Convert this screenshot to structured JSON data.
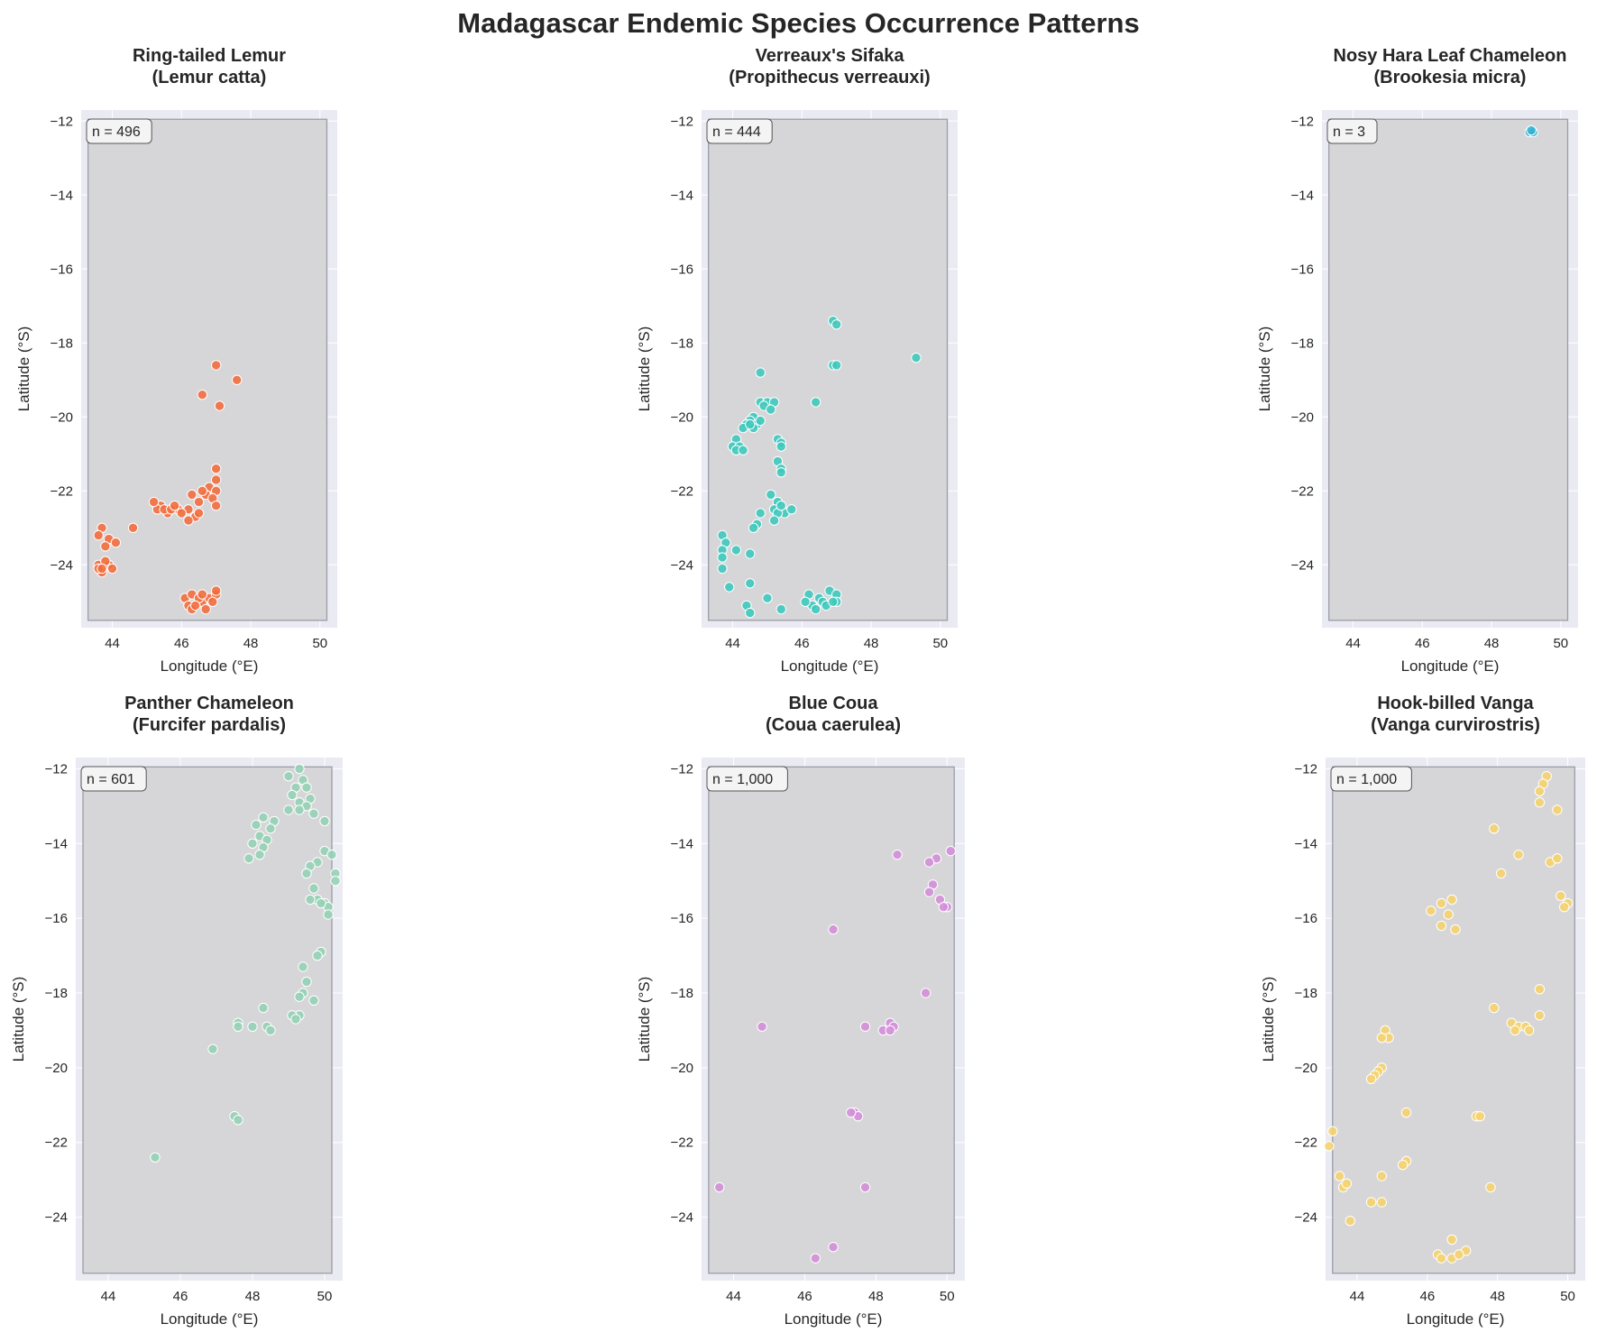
{
  "figure": {
    "title": "Madagascar Endemic Species Occurrence Patterns",
    "xlabel": "Longitude (°E)",
    "ylabel": "Latitude (°S)"
  },
  "chart_data": [
    {
      "type": "scatter",
      "title_line1": "Ring-tailed Lemur",
      "title_line2": "(Lemur catta)",
      "count_label": "n = 496",
      "color": "#f26b3a",
      "xlim": [
        43.1,
        50.5
      ],
      "ylim": [
        -25.7,
        -11.7
      ],
      "xticks": [
        44,
        46,
        48,
        50
      ],
      "yticks": [
        -12,
        -14,
        -16,
        -18,
        -20,
        -22,
        -24
      ],
      "points": [
        [
          47.0,
          -18.6
        ],
        [
          47.6,
          -19.0
        ],
        [
          46.6,
          -19.4
        ],
        [
          47.1,
          -19.7
        ],
        [
          47.0,
          -21.4
        ],
        [
          47.0,
          -21.7
        ],
        [
          46.8,
          -21.9
        ],
        [
          47.0,
          -22.0
        ],
        [
          46.7,
          -22.1
        ],
        [
          46.9,
          -22.2
        ],
        [
          46.5,
          -22.3
        ],
        [
          47.0,
          -22.4
        ],
        [
          46.6,
          -22.0
        ],
        [
          46.3,
          -22.1
        ],
        [
          46.2,
          -22.5
        ],
        [
          46.4,
          -22.7
        ],
        [
          46.2,
          -22.8
        ],
        [
          46.5,
          -22.6
        ],
        [
          45.9,
          -22.5
        ],
        [
          46.0,
          -22.6
        ],
        [
          45.4,
          -22.4
        ],
        [
          45.3,
          -22.5
        ],
        [
          45.6,
          -22.6
        ],
        [
          45.2,
          -22.3
        ],
        [
          45.5,
          -22.5
        ],
        [
          45.7,
          -22.5
        ],
        [
          45.8,
          -22.4
        ],
        [
          44.6,
          -23.0
        ],
        [
          43.7,
          -23.0
        ],
        [
          43.6,
          -23.2
        ],
        [
          43.9,
          -23.3
        ],
        [
          44.1,
          -23.4
        ],
        [
          43.8,
          -23.5
        ],
        [
          43.6,
          -24.0
        ],
        [
          43.7,
          -24.2
        ],
        [
          43.9,
          -24.0
        ],
        [
          44.0,
          -24.1
        ],
        [
          43.8,
          -23.9
        ],
        [
          43.6,
          -24.1
        ],
        [
          43.7,
          -24.1
        ],
        [
          46.1,
          -24.9
        ],
        [
          46.3,
          -24.8
        ],
        [
          46.2,
          -25.1
        ],
        [
          46.3,
          -25.2
        ],
        [
          46.6,
          -25.0
        ],
        [
          46.5,
          -24.9
        ],
        [
          46.7,
          -25.2
        ],
        [
          46.8,
          -24.9
        ],
        [
          47.0,
          -24.8
        ],
        [
          46.9,
          -25.0
        ],
        [
          47.0,
          -24.7
        ],
        [
          46.4,
          -25.1
        ],
        [
          46.6,
          -24.8
        ]
      ]
    },
    {
      "type": "scatter",
      "title_line1": "Verreaux's Sifaka",
      "title_line2": "(Propithecus verreauxi)",
      "count_label": "n = 444",
      "color": "#3cc8bc",
      "xlim": [
        43.1,
        50.5
      ],
      "ylim": [
        -25.7,
        -11.7
      ],
      "xticks": [
        44,
        46,
        48,
        50
      ],
      "yticks": [
        -12,
        -14,
        -16,
        -18,
        -20,
        -22,
        -24
      ],
      "points": [
        [
          46.9,
          -17.4
        ],
        [
          47.0,
          -17.5
        ],
        [
          49.3,
          -18.4
        ],
        [
          46.9,
          -18.6
        ],
        [
          47.0,
          -18.6
        ],
        [
          44.8,
          -18.8
        ],
        [
          46.4,
          -19.6
        ],
        [
          44.8,
          -19.6
        ],
        [
          45.0,
          -19.6
        ],
        [
          45.2,
          -19.6
        ],
        [
          44.9,
          -19.7
        ],
        [
          45.1,
          -19.8
        ],
        [
          44.6,
          -20.0
        ],
        [
          44.5,
          -20.1
        ],
        [
          44.7,
          -20.2
        ],
        [
          44.4,
          -20.2
        ],
        [
          44.6,
          -20.3
        ],
        [
          44.3,
          -20.3
        ],
        [
          44.8,
          -20.1
        ],
        [
          44.5,
          -20.2
        ],
        [
          44.1,
          -20.6
        ],
        [
          44.0,
          -20.8
        ],
        [
          44.2,
          -20.8
        ],
        [
          44.1,
          -20.9
        ],
        [
          44.3,
          -20.9
        ],
        [
          45.3,
          -20.6
        ],
        [
          45.4,
          -20.7
        ],
        [
          45.4,
          -20.8
        ],
        [
          45.3,
          -21.2
        ],
        [
          45.4,
          -21.4
        ],
        [
          45.4,
          -21.5
        ],
        [
          45.1,
          -22.1
        ],
        [
          45.3,
          -22.3
        ],
        [
          45.2,
          -22.5
        ],
        [
          45.5,
          -22.6
        ],
        [
          45.3,
          -22.6
        ],
        [
          45.7,
          -22.5
        ],
        [
          45.4,
          -22.4
        ],
        [
          44.8,
          -22.6
        ],
        [
          45.2,
          -22.8
        ],
        [
          44.7,
          -22.9
        ],
        [
          44.6,
          -23.0
        ],
        [
          43.7,
          -23.2
        ],
        [
          43.8,
          -23.4
        ],
        [
          43.7,
          -23.6
        ],
        [
          44.1,
          -23.6
        ],
        [
          43.7,
          -23.8
        ],
        [
          44.5,
          -23.7
        ],
        [
          43.7,
          -24.1
        ],
        [
          44.5,
          -24.5
        ],
        [
          43.9,
          -24.6
        ],
        [
          45.0,
          -24.9
        ],
        [
          44.4,
          -25.1
        ],
        [
          44.5,
          -25.3
        ],
        [
          45.4,
          -25.2
        ],
        [
          46.2,
          -24.8
        ],
        [
          46.5,
          -24.9
        ],
        [
          46.6,
          -25.0
        ],
        [
          46.8,
          -24.7
        ],
        [
          47.0,
          -24.8
        ],
        [
          47.0,
          -25.0
        ],
        [
          46.3,
          -25.1
        ],
        [
          46.1,
          -25.0
        ],
        [
          46.4,
          -25.2
        ],
        [
          46.7,
          -25.1
        ],
        [
          46.9,
          -25.0
        ]
      ]
    },
    {
      "type": "scatter",
      "title_line1": "Nosy Hara Leaf Chameleon",
      "title_line2": "(Brookesia micra)",
      "count_label": "n = 3",
      "color": "#34b4d2",
      "xlim": [
        43.1,
        50.5
      ],
      "ylim": [
        -25.7,
        -11.7
      ],
      "xticks": [
        44,
        46,
        48,
        50
      ],
      "yticks": [
        -12,
        -14,
        -16,
        -18,
        -20,
        -22,
        -24
      ],
      "points": [
        [
          49.1,
          -12.3
        ],
        [
          49.2,
          -12.3
        ],
        [
          49.15,
          -12.25
        ]
      ]
    },
    {
      "type": "scatter",
      "title_line1": "Panther Chameleon",
      "title_line2": "(Furcifer pardalis)",
      "count_label": "n = 601",
      "color": "#94d2b4",
      "xlim": [
        43.1,
        50.5
      ],
      "ylim": [
        -25.7,
        -11.7
      ],
      "xticks": [
        44,
        46,
        48,
        50
      ],
      "yticks": [
        -12,
        -14,
        -16,
        -18,
        -20,
        -22,
        -24
      ],
      "points": [
        [
          49.3,
          -12.0
        ],
        [
          49.0,
          -12.2
        ],
        [
          49.4,
          -12.3
        ],
        [
          49.2,
          -12.5
        ],
        [
          49.5,
          -12.5
        ],
        [
          49.1,
          -12.7
        ],
        [
          49.6,
          -12.8
        ],
        [
          49.3,
          -12.9
        ],
        [
          49.0,
          -13.1
        ],
        [
          49.5,
          -13.0
        ],
        [
          49.3,
          -13.1
        ],
        [
          49.7,
          -13.2
        ],
        [
          50.0,
          -13.4
        ],
        [
          48.3,
          -13.3
        ],
        [
          48.6,
          -13.4
        ],
        [
          48.1,
          -13.5
        ],
        [
          48.5,
          -13.6
        ],
        [
          48.2,
          -13.8
        ],
        [
          48.4,
          -13.9
        ],
        [
          48.0,
          -14.0
        ],
        [
          48.3,
          -14.1
        ],
        [
          47.9,
          -14.4
        ],
        [
          48.2,
          -14.3
        ],
        [
          50.0,
          -14.2
        ],
        [
          50.2,
          -14.3
        ],
        [
          49.8,
          -14.5
        ],
        [
          49.6,
          -14.6
        ],
        [
          49.5,
          -14.8
        ],
        [
          50.3,
          -14.8
        ],
        [
          50.3,
          -15.0
        ],
        [
          49.7,
          -15.2
        ],
        [
          49.8,
          -15.5
        ],
        [
          49.6,
          -15.5
        ],
        [
          50.0,
          -15.6
        ],
        [
          50.1,
          -15.7
        ],
        [
          49.9,
          -15.6
        ],
        [
          50.1,
          -15.9
        ],
        [
          49.9,
          -16.9
        ],
        [
          49.8,
          -17.0
        ],
        [
          49.4,
          -17.3
        ],
        [
          49.5,
          -17.7
        ],
        [
          49.4,
          -18.0
        ],
        [
          49.3,
          -18.1
        ],
        [
          49.7,
          -18.2
        ],
        [
          49.3,
          -18.6
        ],
        [
          49.1,
          -18.6
        ],
        [
          49.2,
          -18.7
        ],
        [
          48.3,
          -18.4
        ],
        [
          47.6,
          -18.8
        ],
        [
          47.6,
          -18.9
        ],
        [
          48.0,
          -18.9
        ],
        [
          48.4,
          -18.9
        ],
        [
          48.5,
          -19.0
        ],
        [
          46.9,
          -19.5
        ],
        [
          47.5,
          -21.3
        ],
        [
          47.6,
          -21.4
        ],
        [
          45.3,
          -22.4
        ]
      ]
    },
    {
      "type": "scatter",
      "title_line1": "Blue Coua",
      "title_line2": "(Coua caerulea)",
      "count_label": "n = 1,000",
      "color": "#d38ed8",
      "xlim": [
        43.1,
        50.5
      ],
      "ylim": [
        -25.7,
        -11.7
      ],
      "xticks": [
        44,
        46,
        48,
        50
      ],
      "yticks": [
        -12,
        -14,
        -16,
        -18,
        -20,
        -22,
        -24
      ],
      "points": [
        [
          48.6,
          -14.3
        ],
        [
          49.7,
          -14.4
        ],
        [
          50.1,
          -14.2
        ],
        [
          49.5,
          -14.5
        ],
        [
          49.6,
          -15.1
        ],
        [
          49.5,
          -15.3
        ],
        [
          49.8,
          -15.5
        ],
        [
          50.0,
          -15.7
        ],
        [
          49.9,
          -15.7
        ],
        [
          46.8,
          -16.3
        ],
        [
          49.4,
          -18.0
        ],
        [
          44.8,
          -18.9
        ],
        [
          47.7,
          -18.9
        ],
        [
          48.2,
          -19.0
        ],
        [
          48.4,
          -18.8
        ],
        [
          48.5,
          -18.9
        ],
        [
          48.4,
          -19.0
        ],
        [
          47.4,
          -21.2
        ],
        [
          47.5,
          -21.3
        ],
        [
          47.3,
          -21.2
        ],
        [
          43.6,
          -23.2
        ],
        [
          47.7,
          -23.2
        ],
        [
          46.8,
          -24.8
        ],
        [
          46.3,
          -25.1
        ]
      ]
    },
    {
      "type": "scatter",
      "title_line1": "Hook-billed Vanga",
      "title_line2": "(Vanga curvirostris)",
      "count_label": "n = 1,000",
      "color": "#f6d36b",
      "xlim": [
        43.1,
        50.5
      ],
      "ylim": [
        -25.7,
        -11.7
      ],
      "xticks": [
        44,
        46,
        48,
        50
      ],
      "yticks": [
        -12,
        -14,
        -16,
        -18,
        -20,
        -22,
        -24
      ],
      "points": [
        [
          49.4,
          -12.2
        ],
        [
          49.3,
          -12.4
        ],
        [
          49.2,
          -12.6
        ],
        [
          49.2,
          -12.9
        ],
        [
          49.7,
          -13.1
        ],
        [
          47.9,
          -13.6
        ],
        [
          48.6,
          -14.3
        ],
        [
          49.5,
          -14.5
        ],
        [
          49.7,
          -14.4
        ],
        [
          48.1,
          -14.8
        ],
        [
          49.8,
          -15.4
        ],
        [
          50.0,
          -15.6
        ],
        [
          49.9,
          -15.7
        ],
        [
          46.7,
          -15.5
        ],
        [
          46.4,
          -15.6
        ],
        [
          46.1,
          -15.8
        ],
        [
          46.6,
          -15.9
        ],
        [
          46.4,
          -16.2
        ],
        [
          46.8,
          -16.3
        ],
        [
          49.2,
          -17.9
        ],
        [
          47.9,
          -18.4
        ],
        [
          49.2,
          -18.6
        ],
        [
          48.4,
          -18.8
        ],
        [
          48.6,
          -18.9
        ],
        [
          48.8,
          -18.9
        ],
        [
          48.5,
          -19.0
        ],
        [
          48.9,
          -19.0
        ],
        [
          44.8,
          -19.0
        ],
        [
          44.9,
          -19.2
        ],
        [
          44.7,
          -19.2
        ],
        [
          44.7,
          -20.0
        ],
        [
          44.6,
          -20.1
        ],
        [
          44.5,
          -20.2
        ],
        [
          44.4,
          -20.3
        ],
        [
          45.4,
          -21.2
        ],
        [
          47.4,
          -21.3
        ],
        [
          47.5,
          -21.3
        ],
        [
          43.3,
          -21.7
        ],
        [
          43.2,
          -22.1
        ],
        [
          45.4,
          -22.5
        ],
        [
          45.3,
          -22.6
        ],
        [
          44.7,
          -22.9
        ],
        [
          43.5,
          -22.9
        ],
        [
          43.6,
          -23.2
        ],
        [
          43.7,
          -23.1
        ],
        [
          47.8,
          -23.2
        ],
        [
          44.4,
          -23.6
        ],
        [
          44.7,
          -23.6
        ],
        [
          43.8,
          -24.1
        ],
        [
          46.7,
          -24.6
        ],
        [
          47.1,
          -24.9
        ],
        [
          46.3,
          -25.0
        ],
        [
          46.4,
          -25.1
        ],
        [
          46.7,
          -25.1
        ],
        [
          46.9,
          -25.0
        ]
      ]
    }
  ]
}
